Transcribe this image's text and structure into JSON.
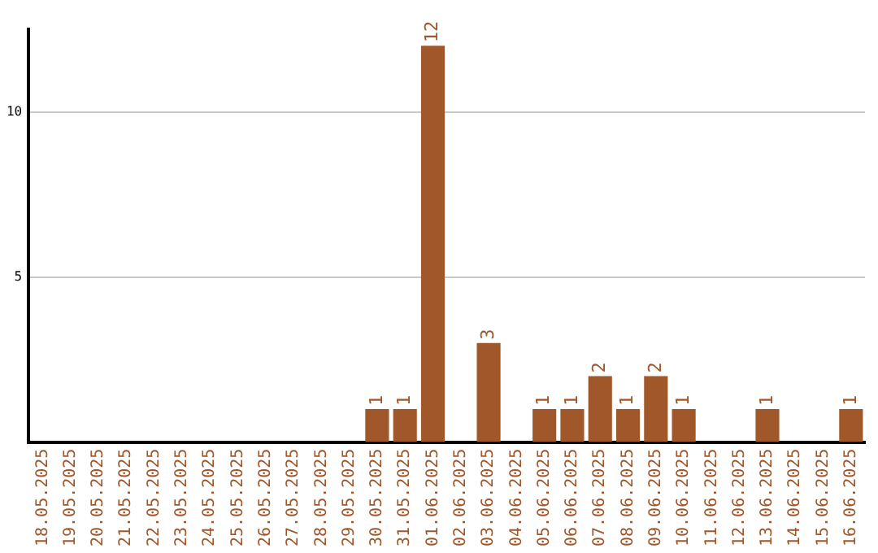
{
  "chart_data": {
    "type": "bar",
    "categories": [
      "18.05.2025",
      "19.05.2025",
      "20.05.2025",
      "21.05.2025",
      "22.05.2025",
      "23.05.2025",
      "24.05.2025",
      "25.05.2025",
      "26.05.2025",
      "27.05.2025",
      "28.05.2025",
      "29.05.2025",
      "30.05.2025",
      "31.05.2025",
      "01.06.2025",
      "02.06.2025",
      "03.06.2025",
      "04.06.2025",
      "05.06.2025",
      "06.06.2025",
      "07.06.2025",
      "08.06.2025",
      "09.06.2025",
      "10.06.2025",
      "11.06.2025",
      "12.06.2025",
      "13.06.2025",
      "14.06.2025",
      "15.06.2025",
      "16.06.2025"
    ],
    "values": [
      0,
      0,
      0,
      0,
      0,
      0,
      0,
      0,
      0,
      0,
      0,
      0,
      1,
      1,
      12,
      0,
      3,
      0,
      1,
      1,
      2,
      1,
      2,
      1,
      0,
      0,
      1,
      0,
      0,
      1
    ],
    "value_labels": [
      null,
      null,
      null,
      null,
      null,
      null,
      null,
      null,
      null,
      null,
      null,
      null,
      "1",
      "1",
      "12",
      null,
      "3",
      null,
      "1",
      "1",
      "2",
      "1",
      "2",
      "1",
      null,
      null,
      "1",
      null,
      null,
      "1"
    ],
    "color": "#a0572a",
    "ylim": [
      0,
      12.5
    ],
    "yticks": [
      5,
      10
    ],
    "grid": "y",
    "legend": false
  }
}
